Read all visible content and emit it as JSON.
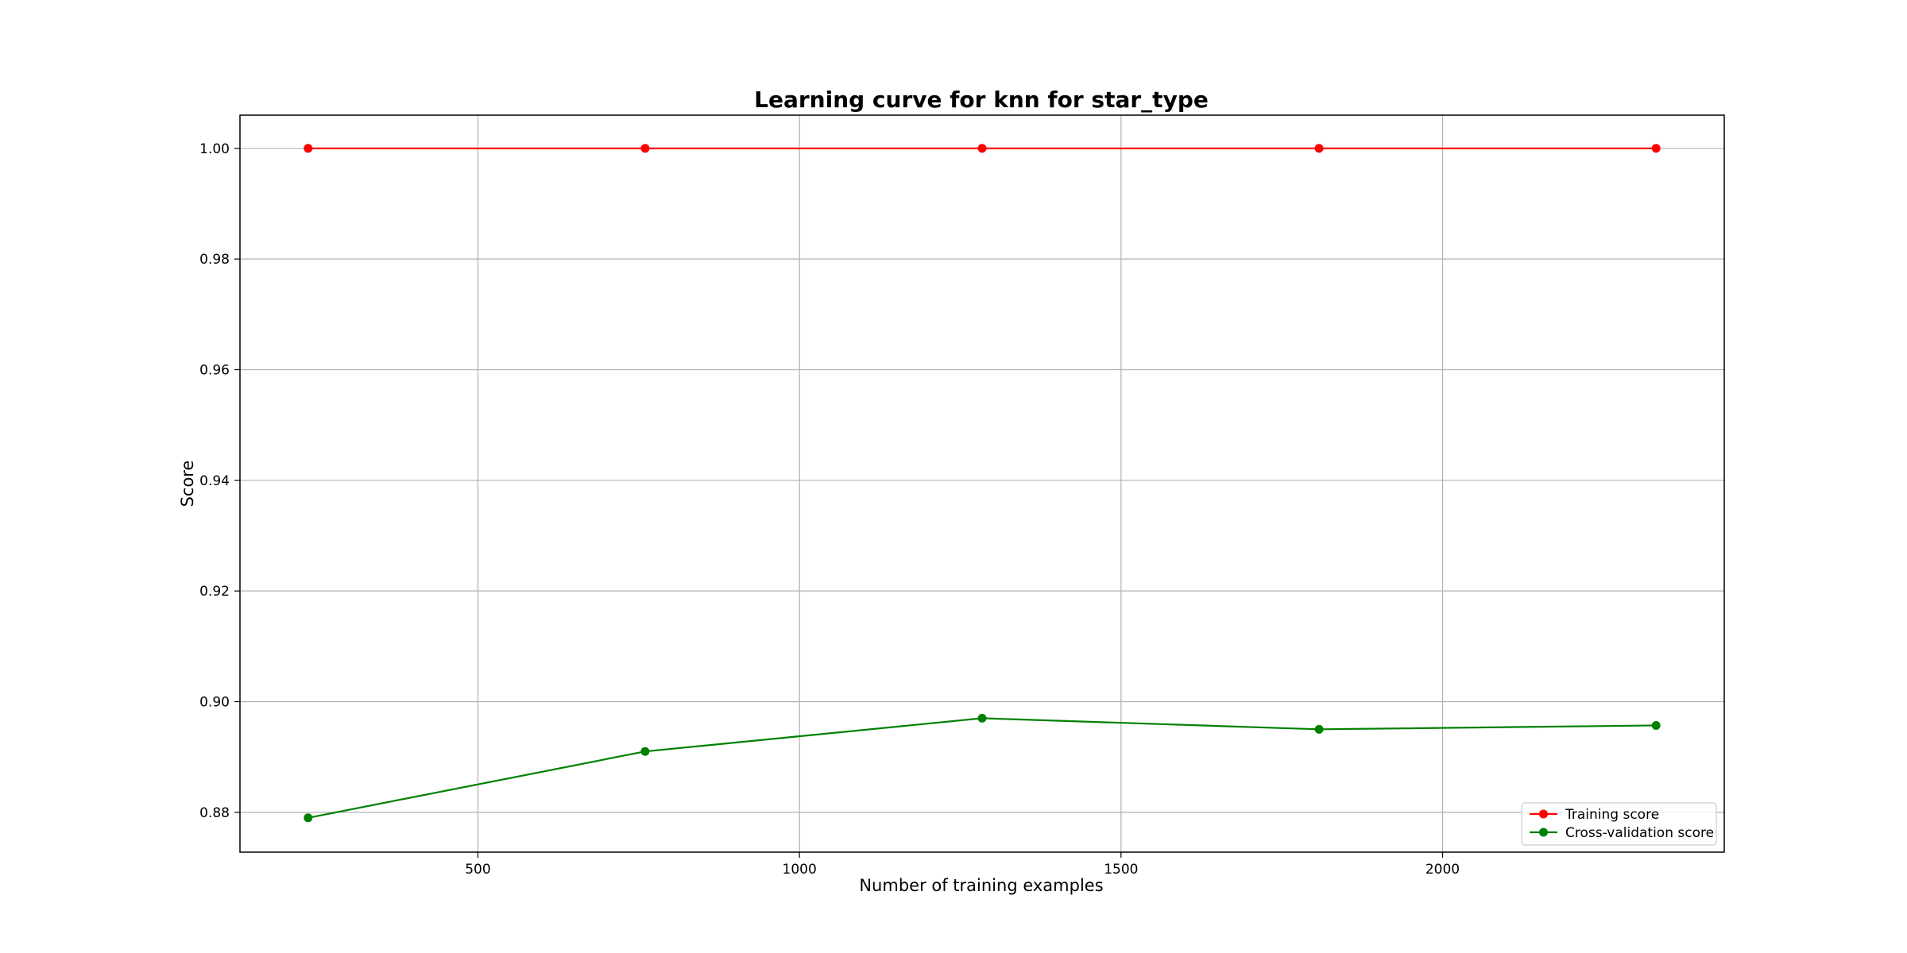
{
  "chart_data": {
    "type": "line",
    "title": "Learning curve for knn for star_type",
    "xlabel": "Number of training examples",
    "ylabel": "Score",
    "x": [
      236,
      760,
      1284,
      1808,
      2332
    ],
    "series": [
      {
        "name": "Training score",
        "color": "#ff0000",
        "values": [
          1.0,
          1.0,
          1.0,
          1.0,
          1.0
        ]
      },
      {
        "name": "Cross-validation score",
        "color": "#008000",
        "values": [
          0.879,
          0.891,
          0.897,
          0.895,
          0.8957
        ]
      }
    ],
    "xlim": [
      130,
      2438
    ],
    "ylim": [
      0.8728,
      1.006
    ],
    "xticks": [
      500,
      1000,
      1500,
      2000
    ],
    "xtick_labels": [
      "500",
      "1000",
      "1500",
      "2000"
    ],
    "yticks": [
      0.88,
      0.9,
      0.92,
      0.94,
      0.96,
      0.98,
      1.0
    ],
    "ytick_labels": [
      "0.88",
      "0.90",
      "0.92",
      "0.94",
      "0.96",
      "0.98",
      "1.00"
    ],
    "grid": true,
    "legend_position": "lower right",
    "marker": "circle"
  }
}
